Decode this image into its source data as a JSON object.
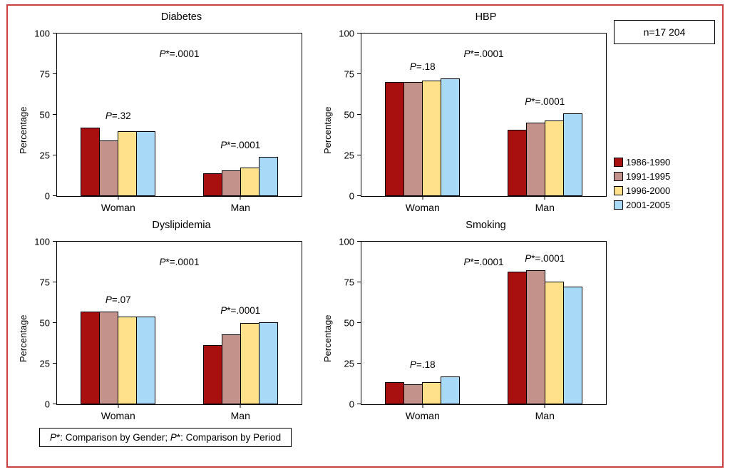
{
  "figure": {
    "n_label": "n=17 204",
    "footnote": "P*: Comparison by Gender; P*: Comparison by Period",
    "frame_border_color": "#c94141",
    "legend_position": "right",
    "legend": [
      {
        "label": "1986-1990",
        "color": "#a81010"
      },
      {
        "label": "1991-1995",
        "color": "#c3928a"
      },
      {
        "label": "1996-2000",
        "color": "#ffe18c"
      },
      {
        "label": "2001-2005",
        "color": "#a8d9f7"
      }
    ]
  },
  "chart_data": [
    {
      "type": "bar",
      "title": "Diabetes",
      "ylabel": "Percentage",
      "ylim": [
        0,
        100
      ],
      "yticks": [
        0,
        25,
        50,
        75,
        100
      ],
      "grid": false,
      "categories": [
        "Woman",
        "Man"
      ],
      "series": [
        {
          "name": "1986-1990",
          "values": [
            42,
            14
          ]
        },
        {
          "name": "1991-1995",
          "values": [
            34,
            16
          ]
        },
        {
          "name": "1996-2000",
          "values": [
            40,
            17.5
          ]
        },
        {
          "name": "2001-2005",
          "values": [
            40,
            24
          ]
        }
      ],
      "p_overall": "P*=.0001",
      "p_groups": [
        "P=.32",
        "P*=.0001"
      ]
    },
    {
      "type": "bar",
      "title": "HBP",
      "ylabel": "Percentage",
      "ylim": [
        0,
        100
      ],
      "yticks": [
        0,
        25,
        50,
        75,
        100
      ],
      "grid": false,
      "categories": [
        "Woman",
        "Man"
      ],
      "series": [
        {
          "name": "1986-1990",
          "values": [
            70,
            41
          ]
        },
        {
          "name": "1991-1995",
          "values": [
            70,
            45
          ]
        },
        {
          "name": "1996-2000",
          "values": [
            71,
            46.5
          ]
        },
        {
          "name": "2001-2005",
          "values": [
            72.5,
            51
          ]
        }
      ],
      "p_overall": "P*=.0001",
      "p_groups": [
        "P=.18",
        "P*=.0001"
      ]
    },
    {
      "type": "bar",
      "title": "Dyslipidemia",
      "ylabel": "Percentage",
      "ylim": [
        0,
        100
      ],
      "yticks": [
        0,
        25,
        50,
        75,
        100
      ],
      "grid": false,
      "categories": [
        "Woman",
        "Man"
      ],
      "series": [
        {
          "name": "1986-1990",
          "values": [
            57,
            36.5
          ]
        },
        {
          "name": "1991-1995",
          "values": [
            57,
            43
          ]
        },
        {
          "name": "1996-2000",
          "values": [
            54,
            50
          ]
        },
        {
          "name": "2001-2005",
          "values": [
            54,
            50.5
          ]
        }
      ],
      "p_overall": "P*=.0001",
      "p_groups": [
        "P=.07",
        "P*=.0001"
      ]
    },
    {
      "type": "bar",
      "title": "Smoking",
      "ylabel": "Percentage",
      "ylim": [
        0,
        100
      ],
      "yticks": [
        0,
        25,
        50,
        75,
        100
      ],
      "grid": false,
      "categories": [
        "Woman",
        "Man"
      ],
      "series": [
        {
          "name": "1986-1990",
          "values": [
            13.5,
            81.5
          ]
        },
        {
          "name": "1991-1995",
          "values": [
            12.5,
            82.5
          ]
        },
        {
          "name": "1996-2000",
          "values": [
            13.5,
            75.5
          ]
        },
        {
          "name": "2001-2005",
          "values": [
            17,
            72.5
          ]
        }
      ],
      "p_overall": "P*=.0001",
      "p_groups": [
        "P=.18",
        "P*=.0001"
      ]
    }
  ]
}
